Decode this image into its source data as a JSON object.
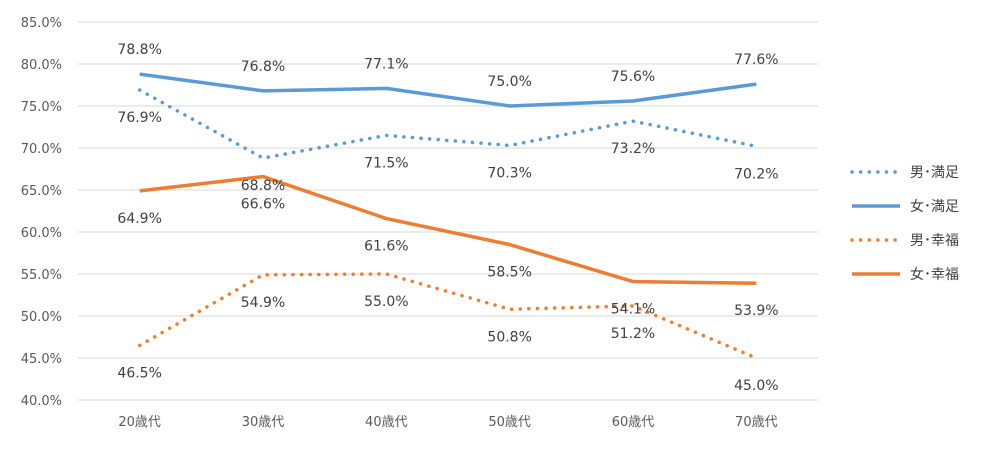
{
  "chart_data": {
    "type": "line",
    "title": "",
    "xlabel": "",
    "ylabel": "",
    "categories": [
      "20歳代",
      "30歳代",
      "40歳代",
      "50歳代",
      "60歳代",
      "70歳代"
    ],
    "ylim": [
      40.0,
      85.0
    ],
    "ytick_step": 5,
    "yticks": [
      "40.0%",
      "45.0%",
      "50.0%",
      "55.0%",
      "60.0%",
      "65.0%",
      "70.0%",
      "75.0%",
      "80.0%",
      "85.0%"
    ],
    "grid": true,
    "legend_position": "right",
    "series": [
      {
        "name": "男･満足",
        "color": "#5B9BD5",
        "dash": "dotted",
        "values": [
          76.9,
          68.8,
          71.5,
          70.3,
          73.2,
          70.2
        ],
        "labels": [
          "76.9%",
          "68.8%",
          "71.5%",
          "70.3%",
          "73.2%",
          "70.2%"
        ],
        "label_pos": "below"
      },
      {
        "name": "女･満足",
        "color": "#5B9BD5",
        "dash": "solid",
        "values": [
          78.8,
          76.8,
          77.1,
          75.0,
          75.6,
          77.6
        ],
        "labels": [
          "78.8%",
          "76.8%",
          "77.1%",
          "75.0%",
          "75.6%",
          "77.6%"
        ],
        "label_pos": "above"
      },
      {
        "name": "男･幸福",
        "color": "#ED7D31",
        "dash": "dotted",
        "values": [
          46.5,
          54.9,
          55.0,
          50.8,
          51.2,
          45.0
        ],
        "labels": [
          "46.5%",
          "54.9%",
          "55.0%",
          "50.8%",
          "51.2%",
          "45.0%"
        ],
        "label_pos": "below"
      },
      {
        "name": "女･幸福",
        "color": "#ED7D31",
        "dash": "solid",
        "values": [
          64.9,
          66.6,
          61.6,
          58.5,
          54.1,
          53.9
        ],
        "labels": [
          "64.9%",
          "66.6%",
          "61.6%",
          "58.5%",
          "54.1%",
          "53.9%"
        ],
        "label_pos": "below"
      }
    ]
  }
}
